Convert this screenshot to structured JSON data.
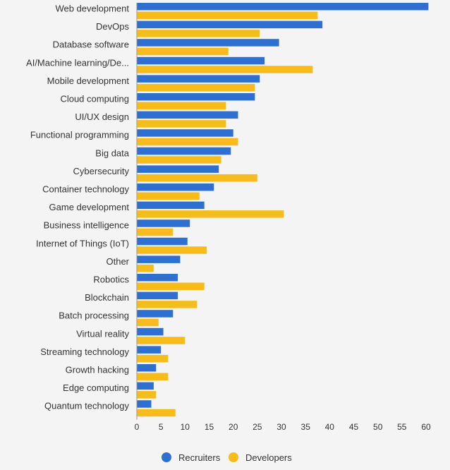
{
  "chart_data": {
    "type": "bar",
    "orientation": "horizontal",
    "title": "",
    "xlabel": "",
    "ylabel": "",
    "xlim": [
      0,
      60
    ],
    "x_ticks": [
      "0",
      "5",
      "10",
      "15",
      "20",
      "25",
      "30",
      "35",
      "40",
      "45",
      "50",
      "55",
      "60"
    ],
    "grid": false,
    "legend_position": "bottom",
    "categories": [
      "Web development",
      "DevOps",
      "Database software",
      "AI/Machine learning/De...",
      "Mobile development",
      "Cloud computing",
      "UI/UX design",
      "Functional programming",
      "Big data",
      "Cybersecurity",
      "Container technology",
      "Game development",
      "Business intelligence",
      "Internet of Things (IoT)",
      "Other",
      "Robotics",
      "Blockchain",
      "Batch processing",
      "Virtual reality",
      "Streaming technology",
      "Growth hacking",
      "Edge computing",
      "Quantum technology"
    ],
    "series": [
      {
        "name": "Recruiters",
        "color": "#2f6fd0",
        "values": [
          60.5,
          38.5,
          29.5,
          26.5,
          25.5,
          24.5,
          21,
          20,
          19.5,
          17,
          16,
          14,
          11,
          10.5,
          9,
          8.5,
          8.5,
          7.5,
          5.5,
          5,
          4,
          3.5,
          3
        ]
      },
      {
        "name": "Developers",
        "color": "#f5bc1b",
        "values": [
          37.5,
          25.5,
          19,
          36.5,
          24.5,
          18.5,
          18.5,
          21,
          17.5,
          25,
          13,
          30.5,
          7.5,
          14.5,
          3.5,
          14,
          12.5,
          4.5,
          10,
          6.5,
          6.5,
          4,
          8
        ]
      }
    ]
  }
}
